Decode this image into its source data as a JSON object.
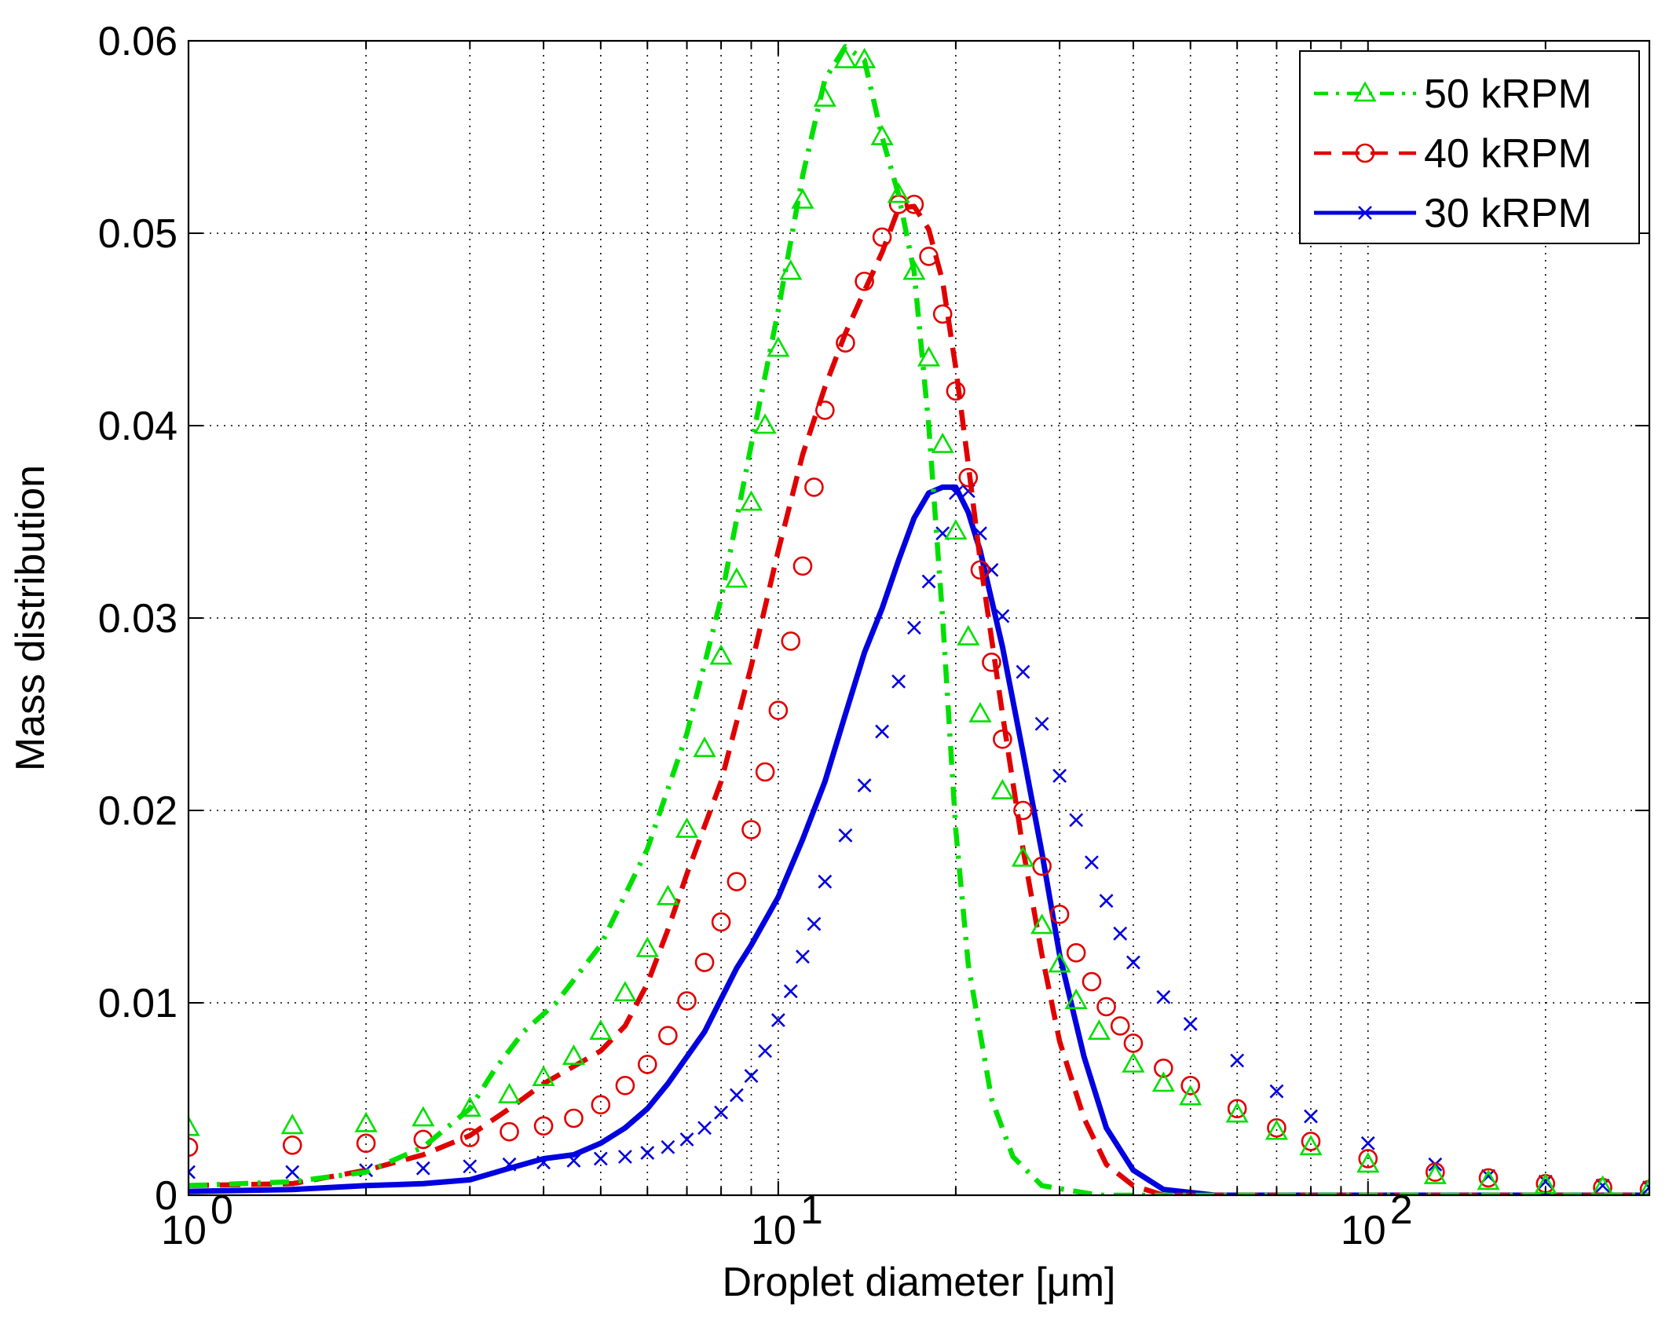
{
  "chart_data": {
    "type": "line",
    "xscale": "log",
    "xlim": [
      1,
      300
    ],
    "ylim": [
      0,
      0.06
    ],
    "xlabel": "Droplet diameter [μm]",
    "ylabel": "Mass distribution",
    "grid": true,
    "legend_position": "top-right",
    "y_ticks": [
      {
        "value": 0,
        "label": "0"
      },
      {
        "value": 0.01,
        "label": "0.01"
      },
      {
        "value": 0.02,
        "label": "0.02"
      },
      {
        "value": 0.03,
        "label": "0.03"
      },
      {
        "value": 0.04,
        "label": "0.04"
      },
      {
        "value": 0.05,
        "label": "0.05"
      },
      {
        "value": 0.06,
        "label": "0.06"
      }
    ],
    "x_ticks": [
      {
        "value": 1,
        "base": "10",
        "exp": "0"
      },
      {
        "value": 10,
        "base": "10",
        "exp": "1"
      },
      {
        "value": 100,
        "base": "10",
        "exp": "2"
      }
    ],
    "series": [
      {
        "name": "50 kRPM",
        "color": "#00e000",
        "line_style": "dashdot",
        "marker": "triangle",
        "curve": [
          [
            1,
            0.0005
          ],
          [
            1.5,
            0.0007
          ],
          [
            2,
            0.0012
          ],
          [
            2.5,
            0.0025
          ],
          [
            3,
            0.0045
          ],
          [
            3.3,
            0.0065
          ],
          [
            3.7,
            0.0085
          ],
          [
            4.2,
            0.01
          ],
          [
            5,
            0.013
          ],
          [
            6,
            0.018
          ],
          [
            7,
            0.024
          ],
          [
            8,
            0.031
          ],
          [
            9,
            0.039
          ],
          [
            10,
            0.046
          ],
          [
            11,
            0.053
          ],
          [
            12,
            0.058
          ],
          [
            13,
            0.0597
          ],
          [
            14,
            0.059
          ],
          [
            15,
            0.055
          ],
          [
            16,
            0.052
          ],
          [
            17,
            0.048
          ],
          [
            18,
            0.04
          ],
          [
            19,
            0.03
          ],
          [
            20,
            0.019
          ],
          [
            21,
            0.012
          ],
          [
            23,
            0.005
          ],
          [
            25,
            0.002
          ],
          [
            28,
            0.0005
          ],
          [
            35,
            0
          ],
          [
            300,
            0
          ]
        ],
        "markers": [
          [
            1,
            0.0035
          ],
          [
            1.5,
            0.0036
          ],
          [
            2,
            0.0037
          ],
          [
            2.5,
            0.004
          ],
          [
            3,
            0.0045
          ],
          [
            3.5,
            0.0052
          ],
          [
            4,
            0.0061
          ],
          [
            4.5,
            0.0072
          ],
          [
            5,
            0.0085
          ],
          [
            5.5,
            0.0105
          ],
          [
            6,
            0.0128
          ],
          [
            6.5,
            0.0155
          ],
          [
            7,
            0.019
          ],
          [
            7.5,
            0.0232
          ],
          [
            8,
            0.028
          ],
          [
            8.5,
            0.032
          ],
          [
            9,
            0.036
          ],
          [
            9.5,
            0.04
          ],
          [
            10,
            0.044
          ],
          [
            10.5,
            0.048
          ],
          [
            11,
            0.0517
          ],
          [
            12,
            0.057
          ],
          [
            13,
            0.059
          ],
          [
            14,
            0.059
          ],
          [
            15,
            0.055
          ],
          [
            16,
            0.052
          ],
          [
            17,
            0.048
          ],
          [
            18,
            0.0435
          ],
          [
            19,
            0.039
          ],
          [
            20,
            0.0345
          ],
          [
            21,
            0.029
          ],
          [
            22,
            0.025
          ],
          [
            24,
            0.021
          ],
          [
            26,
            0.0175
          ],
          [
            28,
            0.014
          ],
          [
            30,
            0.012
          ],
          [
            32,
            0.0101
          ],
          [
            35,
            0.0085
          ],
          [
            40,
            0.0068
          ],
          [
            45,
            0.0058
          ],
          [
            50,
            0.0051
          ],
          [
            60,
            0.0042
          ],
          [
            70,
            0.0033
          ],
          [
            80,
            0.0025
          ],
          [
            100,
            0.0016
          ],
          [
            130,
            0.001
          ],
          [
            160,
            0.0007
          ],
          [
            200,
            0.0005
          ],
          [
            250,
            0.0004
          ],
          [
            300,
            0.0003
          ]
        ]
      },
      {
        "name": "40 kRPM",
        "color": "#e00000",
        "line_style": "dashed",
        "marker": "circle",
        "curve": [
          [
            1,
            0.0005
          ],
          [
            1.5,
            0.0006
          ],
          [
            2,
            0.0013
          ],
          [
            2.5,
            0.0021
          ],
          [
            3,
            0.0031
          ],
          [
            3.5,
            0.0045
          ],
          [
            4,
            0.0058
          ],
          [
            5,
            0.0075
          ],
          [
            5.5,
            0.0088
          ],
          [
            6,
            0.011
          ],
          [
            6.5,
            0.0138
          ],
          [
            7,
            0.0167
          ],
          [
            8,
            0.0215
          ],
          [
            9,
            0.0275
          ],
          [
            10,
            0.0335
          ],
          [
            11,
            0.0385
          ],
          [
            12,
            0.042
          ],
          [
            13,
            0.0448
          ],
          [
            14,
            0.047
          ],
          [
            15,
            0.049
          ],
          [
            16,
            0.0513
          ],
          [
            17,
            0.0514
          ],
          [
            18,
            0.0502
          ],
          [
            19,
            0.0475
          ],
          [
            20,
            0.043
          ],
          [
            21,
            0.038
          ],
          [
            22,
            0.033
          ],
          [
            24,
            0.025
          ],
          [
            26,
            0.018
          ],
          [
            28,
            0.0125
          ],
          [
            30,
            0.008
          ],
          [
            33,
            0.004
          ],
          [
            36,
            0.0016
          ],
          [
            40,
            0.0005
          ],
          [
            45,
            0
          ],
          [
            300,
            0
          ]
        ],
        "markers": [
          [
            1,
            0.0025
          ],
          [
            1.5,
            0.0026
          ],
          [
            2,
            0.0027
          ],
          [
            2.5,
            0.0029
          ],
          [
            3,
            0.003
          ],
          [
            3.5,
            0.0033
          ],
          [
            4,
            0.0036
          ],
          [
            4.5,
            0.004
          ],
          [
            5,
            0.0047
          ],
          [
            5.5,
            0.0057
          ],
          [
            6,
            0.0068
          ],
          [
            6.5,
            0.0083
          ],
          [
            7,
            0.0101
          ],
          [
            7.5,
            0.0121
          ],
          [
            8,
            0.0142
          ],
          [
            8.5,
            0.0163
          ],
          [
            9,
            0.019
          ],
          [
            9.5,
            0.022
          ],
          [
            10,
            0.0252
          ],
          [
            10.5,
            0.0288
          ],
          [
            11,
            0.0327
          ],
          [
            11.5,
            0.0368
          ],
          [
            12,
            0.0408
          ],
          [
            13,
            0.0443
          ],
          [
            14,
            0.0475
          ],
          [
            15,
            0.0498
          ],
          [
            16,
            0.0515
          ],
          [
            17,
            0.0515
          ],
          [
            18,
            0.0488
          ],
          [
            19,
            0.0458
          ],
          [
            20,
            0.0418
          ],
          [
            21,
            0.0373
          ],
          [
            22,
            0.0325
          ],
          [
            23,
            0.0277
          ],
          [
            24,
            0.0237
          ],
          [
            26,
            0.02
          ],
          [
            28,
            0.0171
          ],
          [
            30,
            0.0146
          ],
          [
            32,
            0.0126
          ],
          [
            34,
            0.0111
          ],
          [
            36,
            0.0098
          ],
          [
            38,
            0.0088
          ],
          [
            40,
            0.0079
          ],
          [
            45,
            0.0066
          ],
          [
            50,
            0.0057
          ],
          [
            60,
            0.0045
          ],
          [
            70,
            0.0035
          ],
          [
            80,
            0.0028
          ],
          [
            100,
            0.0019
          ],
          [
            130,
            0.0012
          ],
          [
            160,
            0.0009
          ],
          [
            200,
            0.0006
          ],
          [
            250,
            0.0004
          ],
          [
            300,
            0.0003
          ]
        ]
      },
      {
        "name": "30 kRPM",
        "color": "#0000e0",
        "line_style": "solid",
        "marker": "x",
        "curve": [
          [
            1,
            0.0002
          ],
          [
            1.5,
            0.0003
          ],
          [
            2,
            0.0005
          ],
          [
            2.5,
            0.0006
          ],
          [
            3,
            0.0008
          ],
          [
            3.5,
            0.0014
          ],
          [
            4,
            0.0019
          ],
          [
            4.5,
            0.0021
          ],
          [
            5,
            0.0027
          ],
          [
            5.5,
            0.0035
          ],
          [
            6,
            0.0045
          ],
          [
            6.5,
            0.0058
          ],
          [
            7,
            0.0072
          ],
          [
            7.5,
            0.0085
          ],
          [
            8,
            0.0102
          ],
          [
            8.5,
            0.0118
          ],
          [
            9,
            0.013
          ],
          [
            10,
            0.0155
          ],
          [
            11,
            0.0185
          ],
          [
            12,
            0.0215
          ],
          [
            13,
            0.025
          ],
          [
            14,
            0.0282
          ],
          [
            15,
            0.0305
          ],
          [
            16,
            0.033
          ],
          [
            17,
            0.0352
          ],
          [
            18,
            0.0365
          ],
          [
            19,
            0.0368
          ],
          [
            20,
            0.0368
          ],
          [
            21,
            0.0355
          ],
          [
            22,
            0.0335
          ],
          [
            24,
            0.0285
          ],
          [
            26,
            0.023
          ],
          [
            28,
            0.0178
          ],
          [
            30,
            0.0125
          ],
          [
            33,
            0.0072
          ],
          [
            36,
            0.0035
          ],
          [
            40,
            0.0013
          ],
          [
            45,
            0.0003
          ],
          [
            55,
            0
          ],
          [
            300,
            0
          ]
        ],
        "markers": [
          [
            1,
            0.0012
          ],
          [
            1.5,
            0.0012
          ],
          [
            2,
            0.0013
          ],
          [
            2.5,
            0.0014
          ],
          [
            3,
            0.0015
          ],
          [
            3.5,
            0.0016
          ],
          [
            4,
            0.0017
          ],
          [
            4.5,
            0.0018
          ],
          [
            5,
            0.0019
          ],
          [
            5.5,
            0.002
          ],
          [
            6,
            0.0022
          ],
          [
            6.5,
            0.0025
          ],
          [
            7,
            0.0029
          ],
          [
            7.5,
            0.0035
          ],
          [
            8,
            0.0043
          ],
          [
            8.5,
            0.0052
          ],
          [
            9,
            0.0062
          ],
          [
            9.5,
            0.0075
          ],
          [
            10,
            0.0091
          ],
          [
            10.5,
            0.0106
          ],
          [
            11,
            0.0124
          ],
          [
            11.5,
            0.0141
          ],
          [
            12,
            0.0163
          ],
          [
            13,
            0.0187
          ],
          [
            14,
            0.0213
          ],
          [
            15,
            0.0241
          ],
          [
            16,
            0.0267
          ],
          [
            17,
            0.0295
          ],
          [
            18,
            0.0319
          ],
          [
            19,
            0.0344
          ],
          [
            20,
            0.0365
          ],
          [
            21,
            0.0366
          ],
          [
            22,
            0.0344
          ],
          [
            23,
            0.0325
          ],
          [
            24,
            0.0301
          ],
          [
            26,
            0.0272
          ],
          [
            28,
            0.0245
          ],
          [
            30,
            0.0218
          ],
          [
            32,
            0.0195
          ],
          [
            34,
            0.0173
          ],
          [
            36,
            0.0153
          ],
          [
            38,
            0.0136
          ],
          [
            40,
            0.0121
          ],
          [
            45,
            0.0103
          ],
          [
            50,
            0.0089
          ],
          [
            60,
            0.007
          ],
          [
            70,
            0.0054
          ],
          [
            80,
            0.0041
          ],
          [
            100,
            0.0027
          ],
          [
            130,
            0.0016
          ],
          [
            160,
            0.001
          ],
          [
            200,
            0.0007
          ],
          [
            250,
            0.0005
          ],
          [
            300,
            0.0004
          ]
        ]
      }
    ]
  }
}
